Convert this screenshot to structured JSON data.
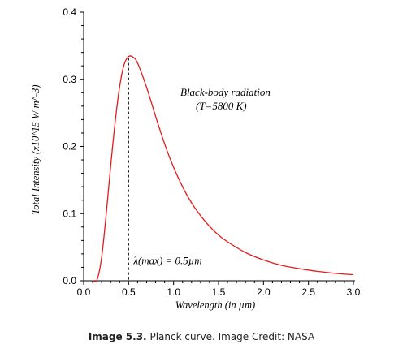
{
  "chart_data": {
    "type": "line",
    "title": "",
    "xlabel": "Wavelength (in µm)",
    "ylabel": "Total Intensity (x10^15 W m^-3)",
    "xlim": [
      0.0,
      3.0
    ],
    "ylim": [
      0.0,
      0.4
    ],
    "x_ticks": [
      "0.0",
      "0.5",
      "1.0",
      "1.5",
      "2.0",
      "2.5",
      "3.0"
    ],
    "y_ticks": [
      "0.0",
      "0.1",
      "0.2",
      "0.3",
      "0.4"
    ],
    "grid": false,
    "series": [
      {
        "color": "#e41a1c",
        "x": [
          0.1,
          0.15,
          0.2,
          0.25,
          0.3,
          0.35,
          0.4,
          0.45,
          0.5,
          0.55,
          0.6,
          0.7,
          0.8,
          0.9,
          1.0,
          1.1,
          1.2,
          1.3,
          1.4,
          1.5,
          1.6,
          1.8,
          2.0,
          2.2,
          2.4,
          2.6,
          2.8,
          3.0
        ],
        "y": [
          0.0,
          0.002,
          0.035,
          0.098,
          0.17,
          0.236,
          0.289,
          0.322,
          0.334,
          0.333,
          0.324,
          0.288,
          0.245,
          0.204,
          0.169,
          0.14,
          0.116,
          0.097,
          0.081,
          0.068,
          0.058,
          0.042,
          0.031,
          0.023,
          0.018,
          0.014,
          0.011,
          0.009
        ]
      }
    ],
    "annotations": {
      "title_line1": "Black-body radiation",
      "title_line2": "(T=5800 K)",
      "peak_label": "λ(max) = 0.5µm",
      "peak_x": 0.5,
      "peak_y": 0.334
    }
  },
  "caption": {
    "bold": "Image 5.3.",
    "text": "Planck curve. Image Credit: NASA"
  }
}
